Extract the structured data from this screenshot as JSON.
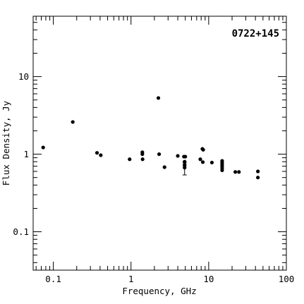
{
  "chart_data": {
    "type": "scatter",
    "title": "",
    "annotation": "0722+145",
    "xlabel": "Frequency, GHz",
    "ylabel": "Flux Density, Jy",
    "xscale": "log",
    "yscale": "log",
    "xlim": [
      0.055,
      100
    ],
    "ylim": [
      0.032,
      60
    ],
    "grid": false,
    "xticks": [
      {
        "value": 0.1,
        "label": "0.1"
      },
      {
        "value": 1,
        "label": "1"
      },
      {
        "value": 10,
        "label": "10"
      },
      {
        "value": 100,
        "label": "100"
      }
    ],
    "yticks": [
      {
        "value": 0.1,
        "label": "0.1"
      },
      {
        "value": 1,
        "label": "1"
      },
      {
        "value": 10,
        "label": "10"
      }
    ],
    "series": [
      {
        "marker": "filled-circle",
        "color": "#000000",
        "points": [
          {
            "x": 0.074,
            "y": 1.22
          },
          {
            "x": 0.178,
            "y": 2.6
          },
          {
            "x": 0.365,
            "y": 1.04
          },
          {
            "x": 0.408,
            "y": 0.97
          },
          {
            "x": 0.96,
            "y": 0.86
          },
          {
            "x": 1.4,
            "y": 1.06
          },
          {
            "x": 1.4,
            "y": 1.0
          },
          {
            "x": 1.41,
            "y": 0.86
          },
          {
            "x": 2.25,
            "y": 5.3
          },
          {
            "x": 2.3,
            "y": 1.0
          },
          {
            "x": 2.7,
            "y": 0.68
          },
          {
            "x": 4.0,
            "y": 0.95
          },
          {
            "x": 4.8,
            "y": 0.93
          },
          {
            "x": 5.0,
            "y": 0.93
          },
          {
            "x": 4.9,
            "y": 0.8
          },
          {
            "x": 4.9,
            "y": 0.74
          },
          {
            "x": 4.9,
            "y": 0.71
          },
          {
            "x": 4.9,
            "y": 0.67,
            "yerr": [
              0.54,
              0.79
            ]
          },
          {
            "x": 7.8,
            "y": 0.86
          },
          {
            "x": 8.3,
            "y": 1.17
          },
          {
            "x": 8.5,
            "y": 1.14
          },
          {
            "x": 8.4,
            "y": 0.79
          },
          {
            "x": 11.0,
            "y": 0.78
          },
          {
            "x": 14.9,
            "y": 0.82
          },
          {
            "x": 14.9,
            "y": 0.78
          },
          {
            "x": 14.9,
            "y": 0.74
          },
          {
            "x": 14.9,
            "y": 0.7
          },
          {
            "x": 14.9,
            "y": 0.66
          },
          {
            "x": 14.9,
            "y": 0.62
          },
          {
            "x": 22.0,
            "y": 0.59
          },
          {
            "x": 24.5,
            "y": 0.59
          },
          {
            "x": 43.0,
            "y": 0.6
          },
          {
            "x": 43.0,
            "y": 0.5
          }
        ]
      }
    ]
  }
}
